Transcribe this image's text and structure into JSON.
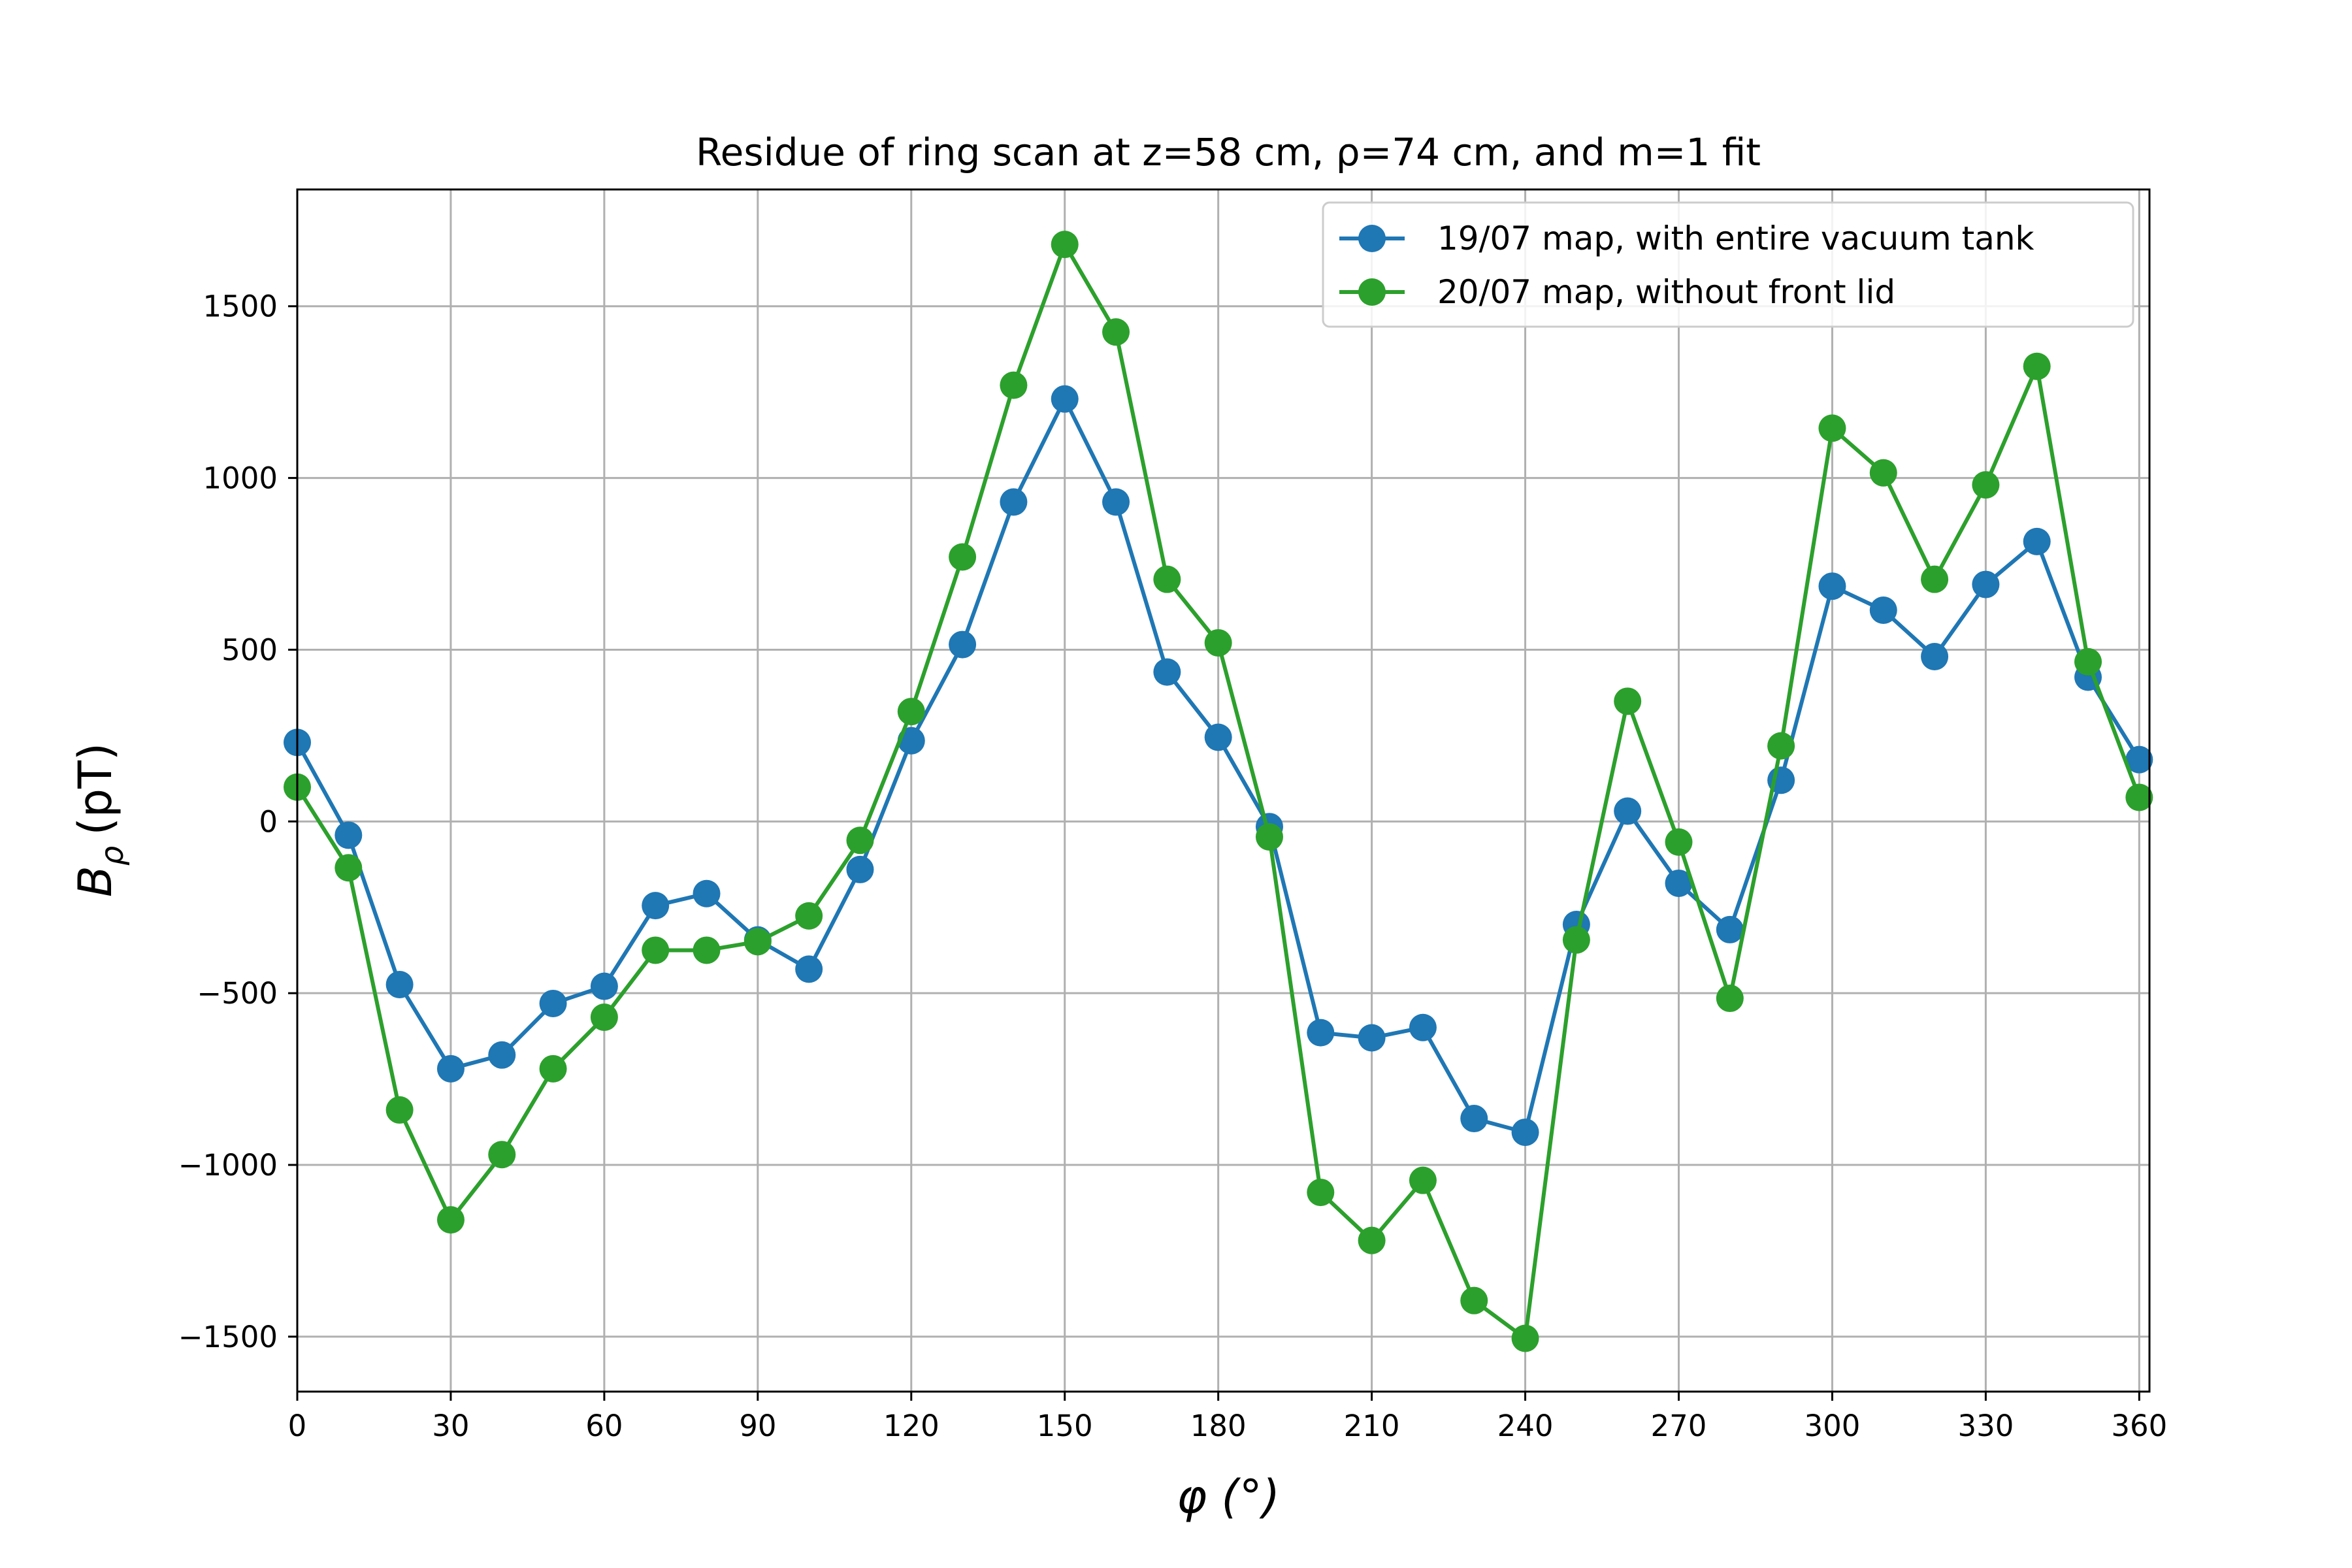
{
  "chart_data": {
    "type": "line",
    "title": "Residue of ring scan at z=58 cm, ρ=74 cm, and m=1 fit",
    "xlabel": "φ (°)",
    "ylabel_base": "B",
    "ylabel_sub": "ρ",
    "ylabel_unit": "(pT)",
    "xlim": [
      0,
      362
    ],
    "ylim": [
      -1660,
      1840
    ],
    "xticks": [
      0,
      30,
      60,
      90,
      120,
      150,
      180,
      210,
      240,
      270,
      300,
      330,
      360
    ],
    "yticks": [
      -1500,
      -1000,
      -500,
      0,
      500,
      1000,
      1500
    ],
    "ytick_labels": [
      "−1500",
      "−1000",
      "−500",
      "0",
      "500",
      "1000",
      "1500"
    ],
    "grid": true,
    "legend_position": "top-right",
    "x": [
      0,
      10,
      20,
      30,
      40,
      50,
      60,
      70,
      80,
      90,
      100,
      110,
      120,
      130,
      140,
      150,
      160,
      170,
      180,
      190,
      200,
      210,
      220,
      230,
      240,
      250,
      260,
      270,
      280,
      290,
      300,
      310,
      320,
      330,
      340,
      350,
      360
    ],
    "series": [
      {
        "name": "19/07 map, with entire vacuum tank",
        "color": "#1f77b4",
        "values": [
          230,
          -40,
          -475,
          -720,
          -680,
          -530,
          -480,
          -245,
          -210,
          -345,
          -430,
          -140,
          235,
          515,
          930,
          1230,
          930,
          435,
          245,
          -15,
          -615,
          -630,
          -600,
          -865,
          -905,
          -300,
          30,
          -180,
          -315,
          120,
          685,
          615,
          480,
          690,
          815,
          420,
          180
        ]
      },
      {
        "name": "20/07 map, without front lid",
        "color": "#2ca02c",
        "values": [
          100,
          -135,
          -840,
          -1160,
          -970,
          -720,
          -570,
          -375,
          -375,
          -350,
          -275,
          -55,
          320,
          770,
          1270,
          1680,
          1425,
          705,
          520,
          -45,
          -1080,
          -1220,
          -1045,
          -1395,
          -1505,
          -345,
          350,
          -60,
          -515,
          220,
          1145,
          1015,
          705,
          980,
          1325,
          465,
          70
        ]
      }
    ]
  }
}
